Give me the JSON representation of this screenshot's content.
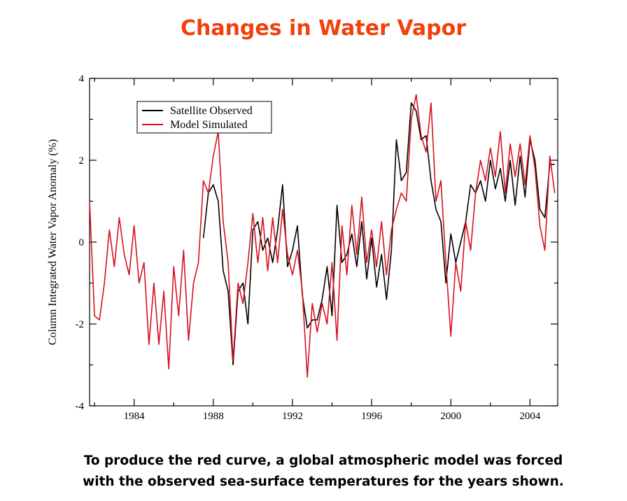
{
  "chart_data": {
    "type": "line",
    "title": "Changes in Water Vapor",
    "ylabel": "Column Integrated Water Vapor Anomaly  (%)",
    "caption": [
      "To produce the red curve, a global atmospheric model was forced",
      "with the observed sea-surface temperatures for the years shown."
    ],
    "x": [
      1981.75,
      1982,
      1982.25,
      1982.5,
      1982.75,
      1983,
      1983.25,
      1983.5,
      1983.75,
      1984,
      1984.25,
      1984.5,
      1984.75,
      1985,
      1985.25,
      1985.5,
      1985.75,
      1986,
      1986.25,
      1986.5,
      1986.75,
      1987,
      1987.25,
      1987.5,
      1987.75,
      1988,
      1988.25,
      1988.5,
      1988.75,
      1989,
      1989.25,
      1989.5,
      1989.75,
      1990,
      1990.25,
      1990.5,
      1990.75,
      1991,
      1991.25,
      1991.5,
      1991.75,
      1992,
      1992.25,
      1992.5,
      1992.75,
      1993,
      1993.25,
      1993.5,
      1993.75,
      1994,
      1994.25,
      1994.5,
      1994.75,
      1995,
      1995.25,
      1995.5,
      1995.75,
      1996,
      1996.25,
      1996.5,
      1996.75,
      1997,
      1997.25,
      1997.5,
      1997.75,
      1998,
      1998.25,
      1998.5,
      1998.75,
      1999,
      1999.25,
      1999.5,
      1999.75,
      2000,
      2000.25,
      2000.5,
      2000.75,
      2001,
      2001.25,
      2001.5,
      2001.75,
      2002,
      2002.25,
      2002.5,
      2002.75,
      2003,
      2003.25,
      2003.5,
      2003.75,
      2004,
      2004.25,
      2004.5,
      2004.75,
      2005,
      2005.25
    ],
    "series": [
      {
        "name": "Satellite Observed",
        "color": "#000000",
        "values": [
          null,
          null,
          null,
          null,
          null,
          null,
          null,
          null,
          null,
          null,
          null,
          null,
          null,
          null,
          null,
          null,
          null,
          null,
          null,
          null,
          null,
          null,
          null,
          0.1,
          1.2,
          1.4,
          1.0,
          -0.7,
          -1.2,
          -3.0,
          -1.2,
          -1.0,
          -2.0,
          0.3,
          0.5,
          -0.2,
          0.1,
          -0.5,
          0.3,
          1.4,
          -0.6,
          -0.2,
          0.4,
          -1.3,
          -2.1,
          -1.9,
          -1.9,
          -1.4,
          -0.6,
          -1.8,
          0.9,
          -0.5,
          -0.3,
          0.2,
          -0.6,
          0.5,
          -0.9,
          0.1,
          -1.1,
          -0.3,
          -1.4,
          -0.2,
          2.5,
          1.5,
          1.7,
          3.4,
          3.2,
          2.5,
          2.6,
          1.5,
          0.8,
          0.5,
          -1.0,
          0.2,
          -0.5,
          0.0,
          0.5,
          1.4,
          1.2,
          1.5,
          1.0,
          2.0,
          1.3,
          1.8,
          1.0,
          2.0,
          0.9,
          2.1,
          1.1,
          2.5,
          2.0,
          0.8,
          0.6,
          1.9,
          1.9
        ]
      },
      {
        "name": "Model Simulated",
        "color": "#d7111f",
        "values": [
          1.0,
          -1.8,
          -1.9,
          -1.0,
          0.3,
          -0.6,
          0.6,
          -0.3,
          -0.8,
          0.4,
          -1.0,
          -0.5,
          -2.5,
          -1.0,
          -2.5,
          -1.2,
          -3.1,
          -0.6,
          -1.8,
          -0.2,
          -2.4,
          -1.0,
          -0.5,
          1.5,
          1.2,
          2.1,
          2.7,
          0.5,
          -0.5,
          -2.9,
          -1.0,
          -1.5,
          -0.5,
          0.7,
          -0.5,
          0.6,
          -0.7,
          0.6,
          -0.5,
          0.8,
          -0.3,
          -0.8,
          -0.2,
          -1.2,
          -3.3,
          -1.5,
          -2.2,
          -1.5,
          -2.0,
          -0.5,
          -2.4,
          0.4,
          -0.8,
          0.9,
          -0.3,
          1.1,
          -0.5,
          0.3,
          -0.6,
          0.5,
          -0.8,
          0.3,
          0.8,
          1.2,
          1.0,
          3.0,
          3.6,
          2.6,
          2.2,
          3.4,
          1.0,
          1.5,
          -0.5,
          -2.3,
          -0.5,
          -1.2,
          0.5,
          -0.2,
          1.2,
          2.0,
          1.5,
          2.3,
          1.6,
          2.7,
          1.2,
          2.4,
          1.6,
          2.4,
          1.4,
          2.6,
          1.8,
          0.4,
          -0.2,
          2.1,
          1.2
        ]
      }
    ],
    "xlim": [
      1981.75,
      2005.4
    ],
    "ylim": [
      -4,
      4
    ],
    "xticks": [
      1984,
      1988,
      1992,
      1996,
      2000,
      2004
    ],
    "yticks": [
      -4,
      -2,
      0,
      2,
      4
    ],
    "xminorticks": [
      1982,
      1986,
      1990,
      1994,
      1998,
      2002
    ],
    "yminorticks": [
      -3,
      -1,
      1,
      3
    ],
    "legend": "upper left"
  }
}
